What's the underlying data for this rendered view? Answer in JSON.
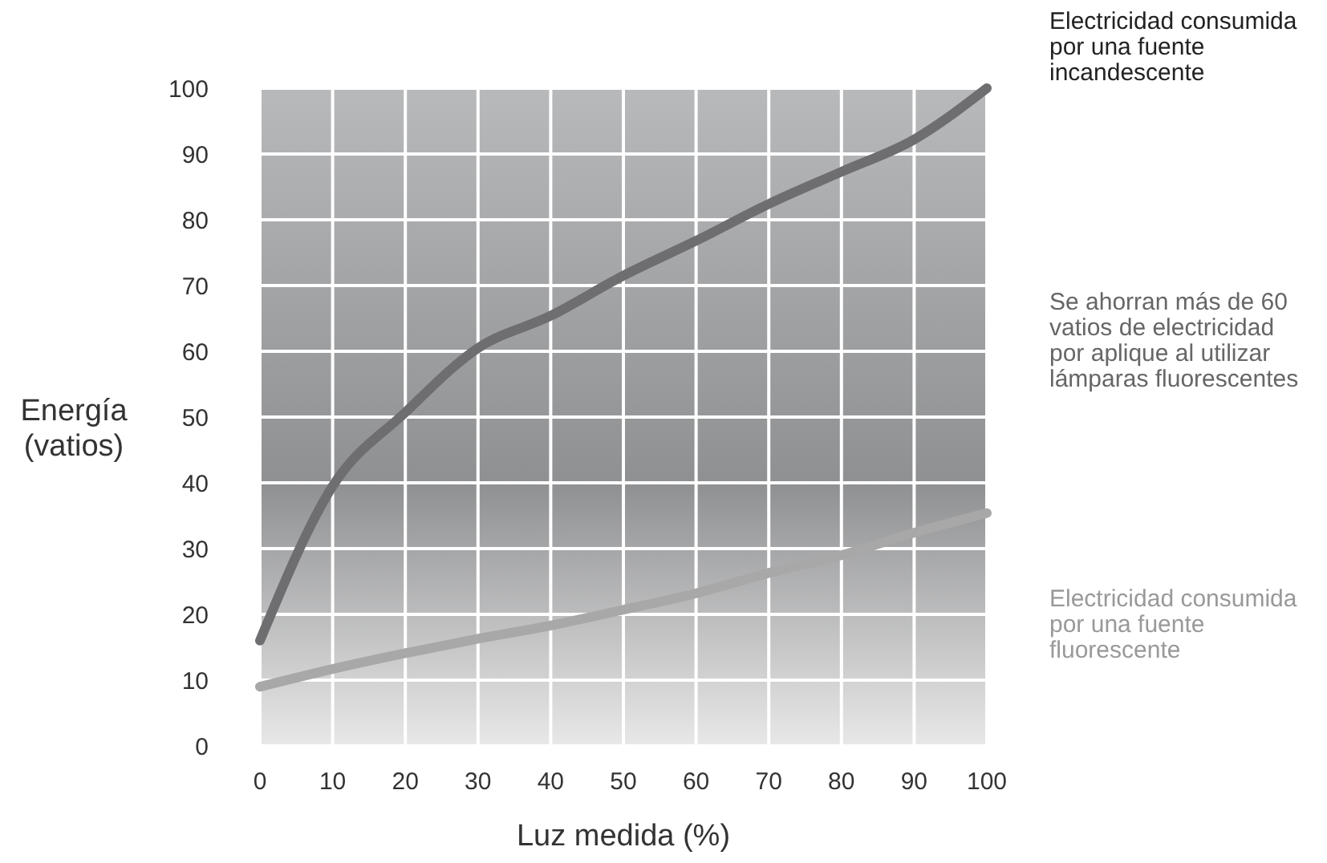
{
  "chart_data": {
    "type": "line",
    "xlabel": "Luz medida (%)",
    "ylabel": "Energía (vatios)",
    "x": [
      0,
      10,
      20,
      30,
      40,
      50,
      60,
      70,
      80,
      90,
      100
    ],
    "xlim": [
      0,
      100
    ],
    "ylim": [
      0,
      100
    ],
    "xticks": [
      0,
      10,
      20,
      30,
      40,
      50,
      60,
      70,
      80,
      90,
      100
    ],
    "yticks": [
      0,
      10,
      20,
      30,
      40,
      50,
      60,
      70,
      80,
      90,
      100
    ],
    "grid": true,
    "marker": "none",
    "line_style": "solid",
    "series": [
      {
        "name": "Electricidad consumida por una fuente incandescente",
        "color": "#6e6e70",
        "values": [
          16,
          39.5,
          50.7,
          60.5,
          65.4,
          71.5,
          76.8,
          82.4,
          87.3,
          92.2,
          100
        ]
      },
      {
        "name": "Electricidad consumida por una fuente fluorescente",
        "color": "#a8a8a8",
        "values": [
          9,
          11.7,
          14.1,
          16.3,
          18.3,
          20.7,
          23.2,
          26.3,
          29,
          32.4,
          35.4
        ]
      }
    ],
    "annotations": [
      "Se ahorran más de 60 vatios de electricidad por aplique al utilizar lámparas fluorescentes"
    ]
  }
}
